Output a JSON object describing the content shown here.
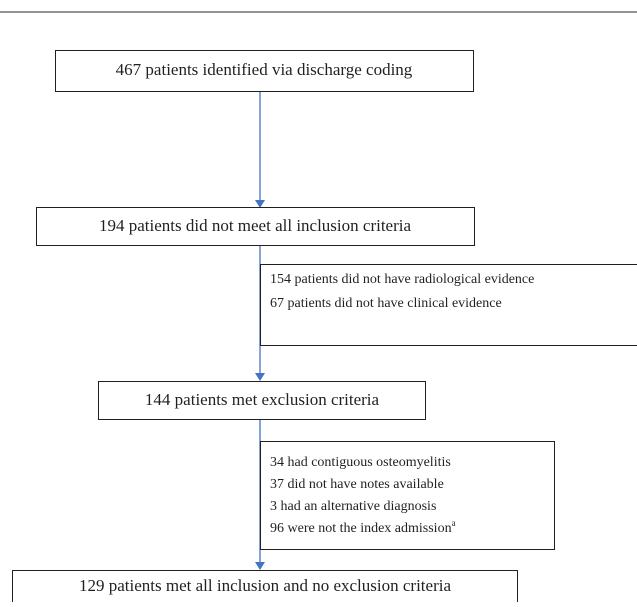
{
  "nodes": [
    {
      "label": "467 patients identified via discharge coding"
    },
    {
      "label": "194 patients did not meet all inclusion criteria"
    },
    {
      "label": "144 patients met exclusion criteria"
    },
    {
      "label": "129 patients met all inclusion and no exclusion criteria"
    }
  ],
  "notes": [
    {
      "lines": [
        "154 patients did not have radiological evidence",
        "67 patients did not have clinical evidence"
      ]
    },
    {
      "lines": [
        "34 had contiguous osteomyelitis",
        "37 did not have notes available",
        "3 had an alternative diagnosis",
        {
          "text": "96 were not the index admission",
          "superscript": "a"
        }
      ]
    }
  ]
}
